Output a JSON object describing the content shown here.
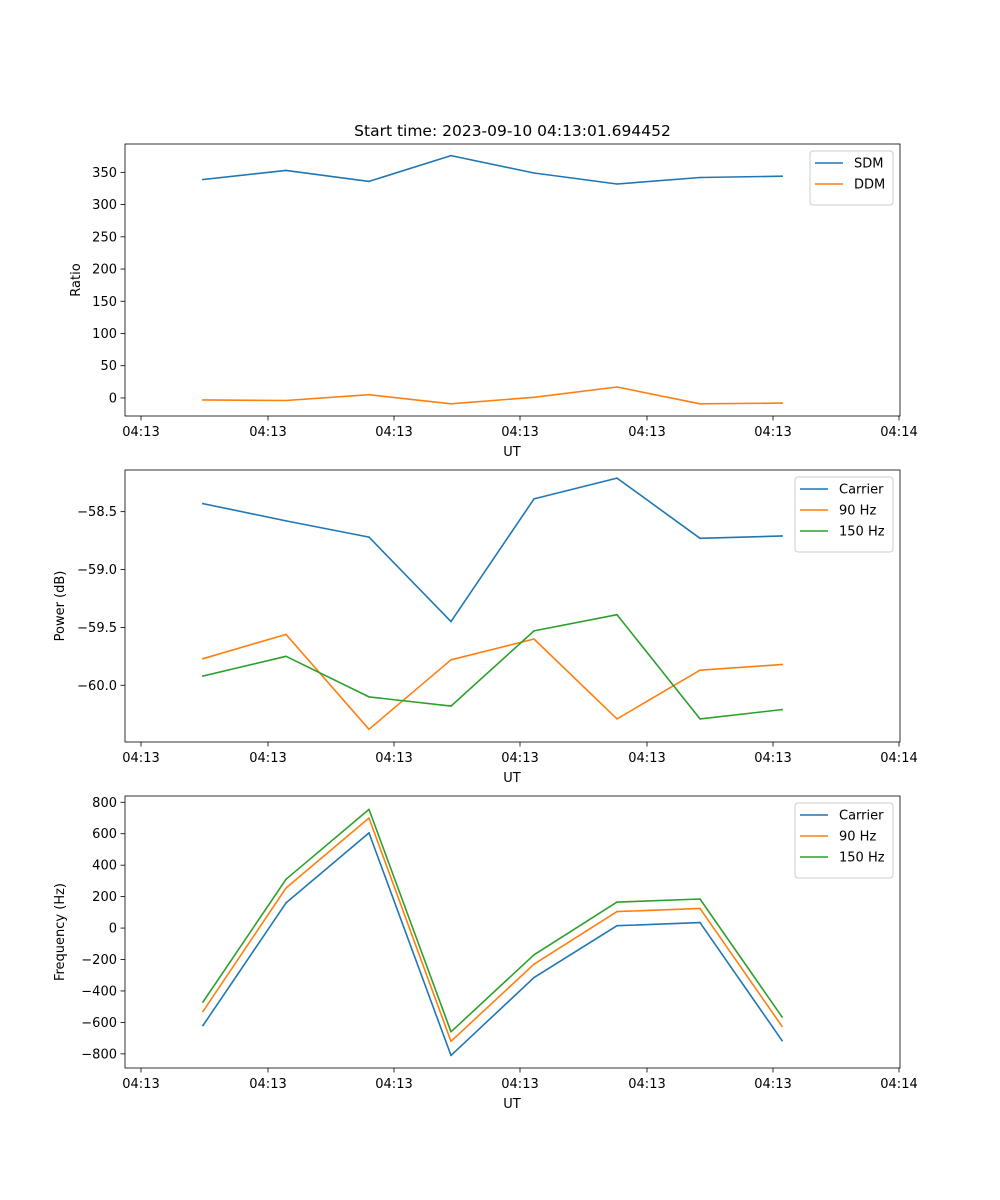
{
  "chart_data": [
    {
      "type": "line",
      "title": "Start time: 2023-09-10 04:13:01.694452",
      "xlabel": "UT",
      "ylabel": "Ratio",
      "x_tick_labels": [
        "04:13",
        "04:13",
        "04:13",
        "04:13",
        "04:13",
        "04:13",
        "04:14"
      ],
      "ylim": [
        -28,
        394
      ],
      "y_ticks": [
        0,
        50,
        100,
        150,
        200,
        250,
        300,
        350
      ],
      "legend": "top-right",
      "series": [
        {
          "name": "SDM",
          "color": "#1f77b4",
          "values": [
            339,
            353,
            336,
            376,
            349,
            332,
            342,
            344
          ]
        },
        {
          "name": "DDM",
          "color": "#ff7f0e",
          "values": [
            -3,
            -4,
            5,
            -9,
            1,
            17,
            -9,
            -8
          ]
        }
      ]
    },
    {
      "type": "line",
      "title": "",
      "xlabel": "UT",
      "ylabel": "Power (dB)",
      "x_tick_labels": [
        "04:13",
        "04:13",
        "04:13",
        "04:13",
        "04:13",
        "04:13",
        "04:14"
      ],
      "ylim": [
        -60.49,
        -58.14
      ],
      "y_ticks": [
        -60.0,
        -59.5,
        -59.0,
        -58.5
      ],
      "y_tick_labels": [
        "−60.0",
        "−59.5",
        "−59.0",
        "−58.5"
      ],
      "legend": "top-right",
      "series": [
        {
          "name": "Carrier",
          "color": "#1f77b4",
          "values": [
            -58.43,
            -58.58,
            -58.72,
            -59.45,
            -58.39,
            -58.21,
            -58.73,
            -58.71
          ]
        },
        {
          "name": "90 Hz",
          "color": "#ff7f0e",
          "values": [
            -59.77,
            -59.56,
            -60.38,
            -59.78,
            -59.6,
            -60.29,
            -59.87,
            -59.82
          ]
        },
        {
          "name": "150 Hz",
          "color": "#2ca02c",
          "values": [
            -59.92,
            -59.75,
            -60.1,
            -60.18,
            -59.53,
            -59.39,
            -60.29,
            -60.21
          ]
        }
      ]
    },
    {
      "type": "line",
      "title": "",
      "xlabel": "UT",
      "ylabel": "Frequency (Hz)",
      "x_tick_labels": [
        "04:13",
        "04:13",
        "04:13",
        "04:13",
        "04:13",
        "04:13",
        "04:14"
      ],
      "ylim": [
        -890,
        840
      ],
      "y_ticks": [
        -800,
        -600,
        -400,
        -200,
        0,
        200,
        400,
        600,
        800
      ],
      "y_tick_labels": [
        "−800",
        "−600",
        "−400",
        "−200",
        "0",
        "200",
        "400",
        "600",
        "800"
      ],
      "legend": "top-right",
      "series": [
        {
          "name": "Carrier",
          "color": "#1f77b4",
          "values": [
            -620,
            160,
            605,
            -810,
            -315,
            15,
            35,
            -715
          ]
        },
        {
          "name": "90 Hz",
          "color": "#ff7f0e",
          "values": [
            -530,
            255,
            700,
            -720,
            -230,
            105,
            125,
            -625
          ]
        },
        {
          "name": "150 Hz",
          "color": "#2ca02c",
          "values": [
            -470,
            310,
            755,
            -660,
            -170,
            165,
            185,
            -565
          ]
        }
      ]
    }
  ]
}
